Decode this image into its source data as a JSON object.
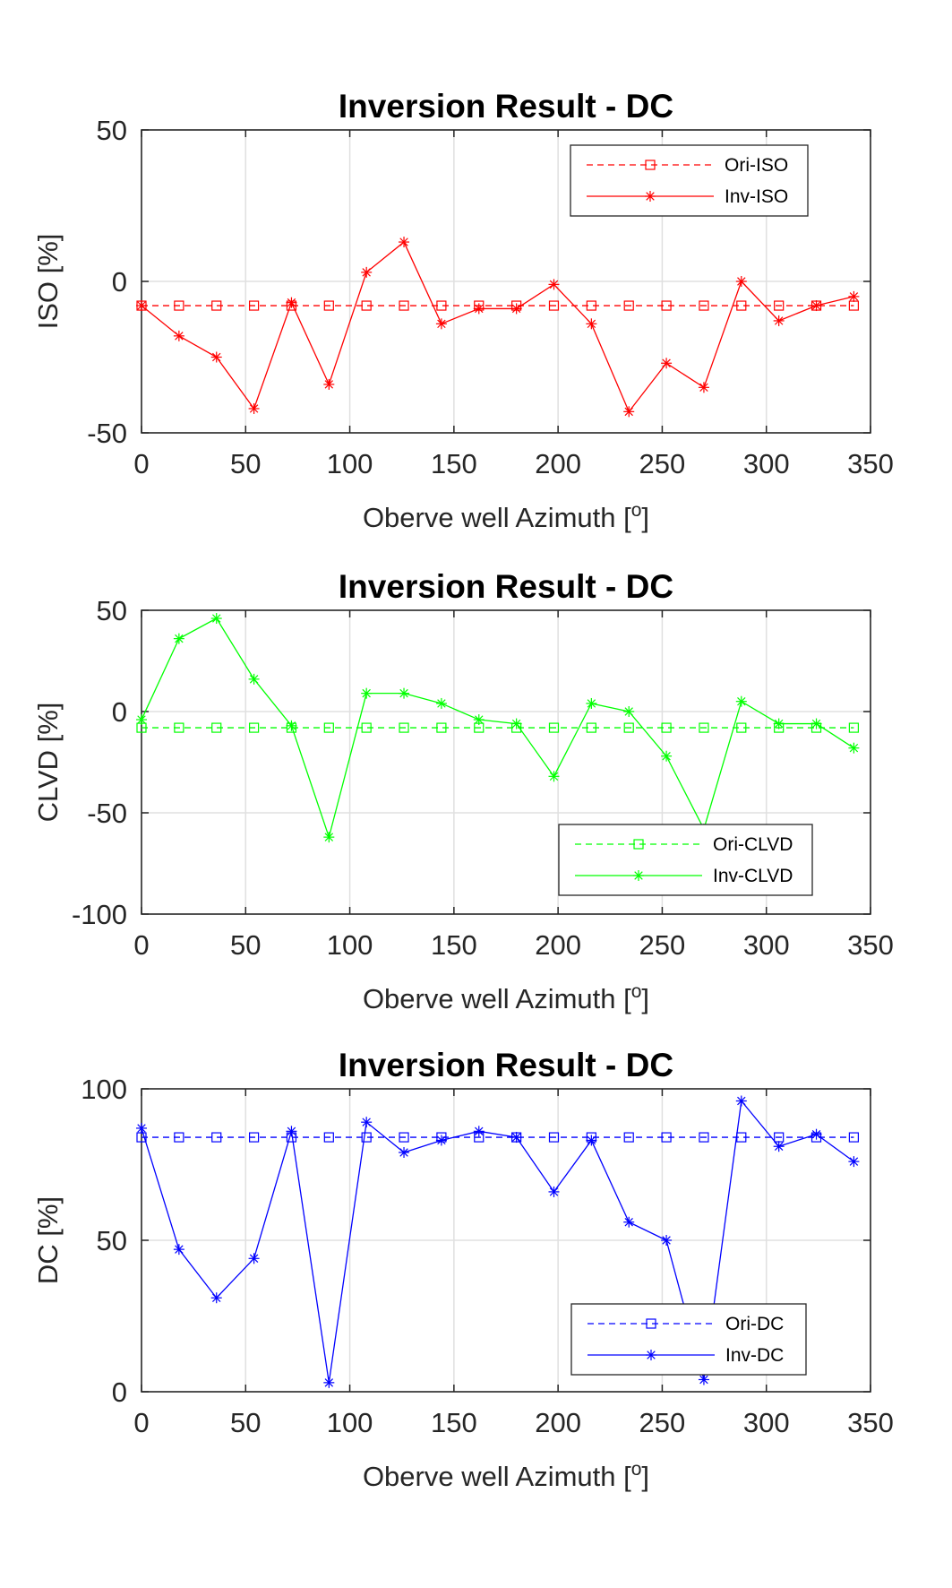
{
  "chart_data": [
    {
      "type": "line",
      "title": "Inversion Result - DC",
      "xlabel": "Oberve well Azimuth [",
      "xlabel_sup": "o",
      "xlabel_end": "]",
      "ylabel": "ISO [%]",
      "xlim": [
        0,
        350
      ],
      "ylim": [
        -50,
        50
      ],
      "xticks": [
        0,
        50,
        100,
        150,
        200,
        250,
        300,
        350
      ],
      "yticks": [
        -50,
        0,
        50
      ],
      "grid": true,
      "legend_position": "top-right",
      "color": "#ff0000",
      "x": [
        0,
        18,
        36,
        54,
        72,
        90,
        108,
        126,
        144,
        162,
        180,
        198,
        216,
        234,
        252,
        270,
        288,
        306,
        324,
        342
      ],
      "series": [
        {
          "name": "Ori-ISO",
          "style": "dashed",
          "marker": "square",
          "values": [
            -8,
            -8,
            -8,
            -8,
            -8,
            -8,
            -8,
            -8,
            -8,
            -8,
            -8,
            -8,
            -8,
            -8,
            -8,
            -8,
            -8,
            -8,
            -8,
            -8
          ]
        },
        {
          "name": "Inv-ISO",
          "style": "solid",
          "marker": "asterisk",
          "values": [
            -8,
            -18,
            -25,
            -42,
            -7,
            -34,
            3,
            13,
            -14,
            -9,
            -9,
            -1,
            -14,
            -43,
            -27,
            -35,
            0,
            -13,
            -8,
            -5
          ]
        }
      ]
    },
    {
      "type": "line",
      "title": "Inversion Result - DC",
      "xlabel": "Oberve well Azimuth [",
      "xlabel_sup": "o",
      "xlabel_end": "]",
      "ylabel": "CLVD [%]",
      "xlim": [
        0,
        350
      ],
      "ylim": [
        -100,
        50
      ],
      "xticks": [
        0,
        50,
        100,
        150,
        200,
        250,
        300,
        350
      ],
      "yticks": [
        -100,
        -50,
        0,
        50
      ],
      "grid": true,
      "legend_position": "bottom-right",
      "color": "#00ff00",
      "x": [
        0,
        18,
        36,
        54,
        72,
        90,
        108,
        126,
        144,
        162,
        180,
        198,
        216,
        234,
        252,
        270,
        288,
        306,
        324,
        342
      ],
      "series": [
        {
          "name": "Ori-CLVD",
          "style": "dashed",
          "marker": "square",
          "values": [
            -8,
            -8,
            -8,
            -8,
            -8,
            -8,
            -8,
            -8,
            -8,
            -8,
            -8,
            -8,
            -8,
            -8,
            -8,
            -8,
            -8,
            -8,
            -8,
            -8
          ]
        },
        {
          "name": "Inv-CLVD",
          "style": "solid",
          "marker": "asterisk",
          "values": [
            -4,
            36,
            46,
            16,
            -7,
            -62,
            9,
            9,
            4,
            -4,
            -6,
            -32,
            4,
            0,
            -22,
            -58,
            5,
            -6,
            -6,
            -18
          ]
        }
      ]
    },
    {
      "type": "line",
      "title": "Inversion Result - DC",
      "xlabel": "Oberve well Azimuth [",
      "xlabel_sup": "o",
      "xlabel_end": "]",
      "ylabel": "DC [%]",
      "xlim": [
        0,
        350
      ],
      "ylim": [
        0,
        100
      ],
      "xticks": [
        0,
        50,
        100,
        150,
        200,
        250,
        300,
        350
      ],
      "yticks": [
        0,
        50,
        100
      ],
      "grid": true,
      "legend_position": "bottom-right",
      "color": "#0000ff",
      "x": [
        0,
        18,
        36,
        54,
        72,
        90,
        108,
        126,
        144,
        162,
        180,
        198,
        216,
        234,
        252,
        270,
        288,
        306,
        324,
        342
      ],
      "series": [
        {
          "name": "Ori-DC",
          "style": "dashed",
          "marker": "square",
          "values": [
            84,
            84,
            84,
            84,
            84,
            84,
            84,
            84,
            84,
            84,
            84,
            84,
            84,
            84,
            84,
            84,
            84,
            84,
            84,
            84
          ]
        },
        {
          "name": "Inv-DC",
          "style": "solid",
          "marker": "asterisk",
          "values": [
            87,
            47,
            31,
            44,
            86,
            3,
            89,
            79,
            83,
            86,
            84,
            66,
            83,
            56,
            50,
            4,
            96,
            81,
            85,
            76
          ]
        }
      ]
    }
  ]
}
